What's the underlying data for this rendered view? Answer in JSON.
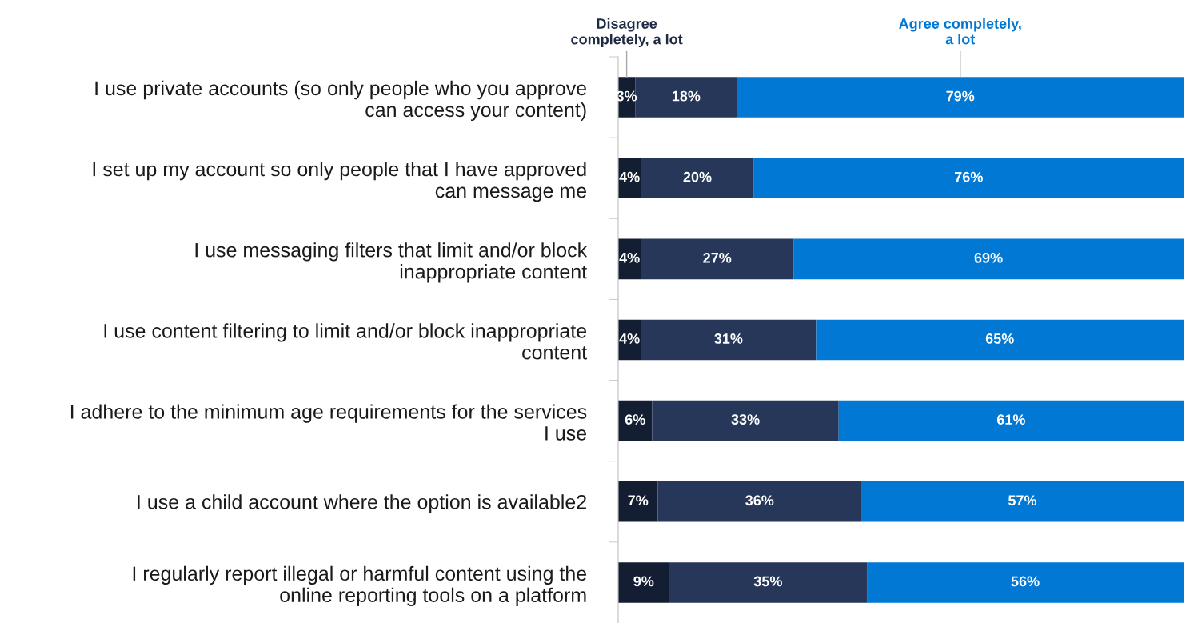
{
  "chart_data": {
    "type": "bar",
    "orientation": "horizontal",
    "stacked": true,
    "tick_labels": "y",
    "grid": false,
    "legend": false,
    "categories": [
      "I use private accounts (so only people who you approve\ncan access your content)",
      "I set up my account so only people that I have approved\ncan message me",
      "I use messaging filters that limit and/or block\ninappropriate content",
      "I use content filtering to limit and/or block inappropriate\ncontent",
      "I adhere to the minimum age requirements for the services\nI use",
      "I use a child account where the option is available2",
      "I regularly report illegal or harmful content using the\nonline reporting tools on a platform"
    ],
    "series": [
      {
        "name": "Disagree\ncompletely, a lot",
        "color": "#141e33",
        "values": [
          3,
          4,
          4,
          4,
          6,
          7,
          9
        ],
        "value_labels": [
          "3%",
          "4%",
          "4%",
          "4%",
          "6%",
          "7%",
          "9%"
        ]
      },
      {
        "color": "#26375a",
        "values": [
          18,
          20,
          27,
          31,
          33,
          36,
          35
        ],
        "value_labels": [
          "18%",
          "20%",
          "27%",
          "31%",
          "33%",
          "36%",
          "35%"
        ]
      },
      {
        "name": "Agree completely,\na lot",
        "color": "#0078d4",
        "values": [
          79,
          76,
          69,
          65,
          61,
          57,
          56
        ],
        "value_labels": [
          "79%",
          "76%",
          "69%",
          "65%",
          "61%",
          "57%",
          "56%"
        ]
      }
    ]
  }
}
